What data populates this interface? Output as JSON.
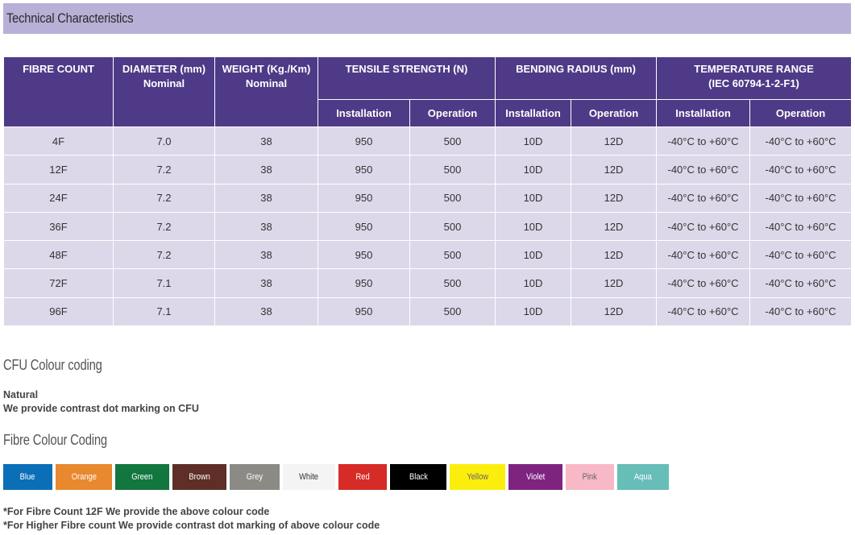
{
  "section_title": "Technical Characteristics",
  "table": {
    "headers_top": [
      {
        "label": "FIBRE COUNT",
        "sub": ""
      },
      {
        "label": "DIAMETER (mm)",
        "sub": "Nominal"
      },
      {
        "label": "WEIGHT (Kg./Km)",
        "sub": "Nominal"
      },
      {
        "label": "TENSILE STRENGTH (N)",
        "sub": ""
      },
      {
        "label": "BENDING RADIUS (mm)",
        "sub": ""
      },
      {
        "label": "TEMPERATURE RANGE",
        "sub": "(IEC 60794-1-2-F1)"
      }
    ],
    "headers_sub": [
      "Installation",
      "Operation",
      "Installation",
      "Operation",
      "Installation",
      "Operation"
    ],
    "rows": [
      [
        "4F",
        "7.0",
        "38",
        "950",
        "500",
        "10D",
        "12D",
        "-40°C to +60°C",
        "-40°C to +60°C"
      ],
      [
        "12F",
        "7.2",
        "38",
        "950",
        "500",
        "10D",
        "12D",
        "-40°C to +60°C",
        "-40°C to +60°C"
      ],
      [
        "24F",
        "7.2",
        "38",
        "950",
        "500",
        "10D",
        "12D",
        "-40°C to +60°C",
        "-40°C to +60°C"
      ],
      [
        "36F",
        "7.2",
        "38",
        "950",
        "500",
        "10D",
        "12D",
        "-40°C to +60°C",
        "-40°C to +60°C"
      ],
      [
        "48F",
        "7.2",
        "38",
        "950",
        "500",
        "10D",
        "12D",
        "-40°C to +60°C",
        "-40°C to +60°C"
      ],
      [
        "72F",
        "7.1",
        "38",
        "950",
        "500",
        "10D",
        "12D",
        "-40°C to +60°C",
        "-40°C to +60°C"
      ],
      [
        "96F",
        "7.1",
        "38",
        "950",
        "500",
        "10D",
        "12D",
        "-40°C to +60°C",
        "-40°C to +60°C"
      ]
    ]
  },
  "cfu": {
    "title": "CFU Colour coding",
    "line1": "Natural",
    "line2": "We provide contrast dot marking on CFU"
  },
  "fibre": {
    "title": "Fibre Colour Coding",
    "colours": [
      {
        "name": "Blue",
        "bg": "#0a6fb7",
        "fg": "#ffffff"
      },
      {
        "name": "Orange",
        "bg": "#e8882f",
        "fg": "#ffffff"
      },
      {
        "name": "Green",
        "bg": "#12763f",
        "fg": "#ffffff"
      },
      {
        "name": "Brown",
        "bg": "#5e2e27",
        "fg": "#ffffff"
      },
      {
        "name": "Grey",
        "bg": "#8b8a85",
        "fg": "#ffffff"
      },
      {
        "name": "White",
        "bg": "#f4f4f4",
        "fg": "#333333"
      },
      {
        "name": "Red",
        "bg": "#d62b27",
        "fg": "#ffffff"
      },
      {
        "name": "Black",
        "bg": "#000000",
        "fg": "#ffffff"
      },
      {
        "name": "Yellow",
        "bg": "#fcee0c",
        "fg": "#666666"
      },
      {
        "name": "Violet",
        "bg": "#7e2480",
        "fg": "#ffffff"
      },
      {
        "name": "Pink",
        "bg": "#f8b8c6",
        "fg": "#666666"
      },
      {
        "name": "Aqua",
        "bg": "#67bdb8",
        "fg": "#ffffff"
      }
    ],
    "note1": "*For Fibre Count 12F We provide the above colour code",
    "note2": "*For Higher Fibre count We provide contrast dot marking of above colour code"
  }
}
